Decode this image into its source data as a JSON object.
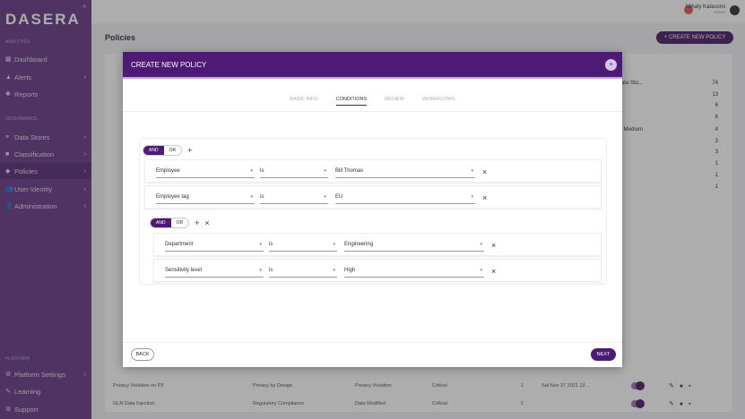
{
  "sidebar": {
    "logo": "DASERA",
    "section1": "ANALYTICS",
    "section2": "GOVERNANCE",
    "section3": "PLATFORM",
    "items": [
      {
        "label": "Dashboard"
      },
      {
        "label": "Alerts"
      },
      {
        "label": "Reports"
      },
      {
        "label": "Data Stores"
      },
      {
        "label": "Classification"
      },
      {
        "label": "Policies"
      },
      {
        "label": "User Identity"
      },
      {
        "label": "Administration"
      },
      {
        "label": "Platform Settings"
      },
      {
        "label": "Learning"
      },
      {
        "label": "Support"
      }
    ]
  },
  "topbar": {
    "user_name": "Mihaly Katasomi",
    "user_role": "Admin"
  },
  "page": {
    "title": "Policies",
    "create_button": "+ CREATE NEW POLICY",
    "stats": [
      {
        "label": "Sensitive Data Sto...",
        "value": "74"
      },
      {
        "value": "13"
      },
      {
        "value": "6"
      },
      {
        "value": "6"
      },
      {
        "label": "... Medium",
        "value": "4"
      },
      {
        "value": "3"
      },
      {
        "value": "3"
      },
      {
        "value": "1"
      },
      {
        "value": "1"
      },
      {
        "value": "1"
      }
    ],
    "rows": [
      {
        "name": "Privacy Violation on PII",
        "category": "Privacy by Design",
        "type": "Privacy Violation",
        "severity": "Critical",
        "count": "1",
        "date": "Sat Nov 27 2021 12..."
      },
      {
        "name": "GLN Data Injection",
        "category": "Regulatory Compliance",
        "type": "Data Modified",
        "severity": "Critical",
        "count": "1",
        "date": ""
      }
    ]
  },
  "modal": {
    "title": "CREATE NEW POLICY",
    "tabs": [
      "BASIC INFO",
      "CONDITIONS",
      "REVIEW",
      "WORKFLOWS"
    ],
    "active_tab": "CONDITIONS",
    "and": "AND",
    "or": "OR",
    "add": "+",
    "remove": "×",
    "conditions": [
      {
        "field": "Employee",
        "op": "is",
        "value": "Bill Thomas"
      },
      {
        "field": "Employee tag",
        "op": "is",
        "value": "EU"
      }
    ],
    "subconditions": [
      {
        "field": "Department",
        "op": "is",
        "value": "Engineering"
      },
      {
        "field": "Sensitivity level",
        "op": "is",
        "value": "High"
      }
    ],
    "back": "BACK",
    "next": "NEXT"
  },
  "colors": {
    "brand": "#4d1a75",
    "sidebar": "#6a3a86"
  }
}
